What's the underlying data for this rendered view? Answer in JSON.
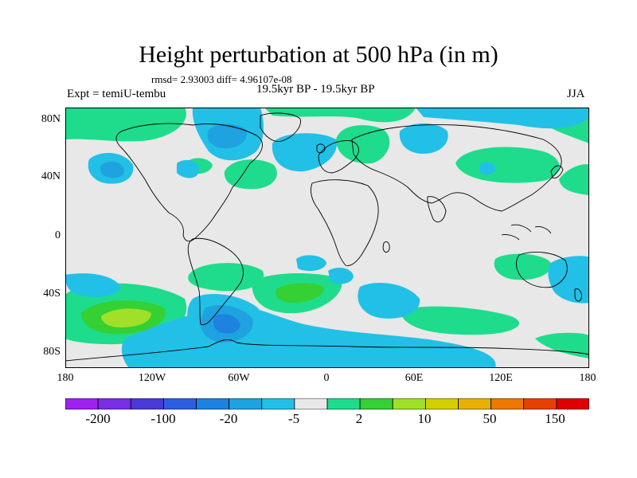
{
  "title": "Height perturbation at 500 hPa (in m)",
  "stats": "rmsd= 2.93003 diff= 4.96107e-08",
  "expt": "Expt = temiU-tembu",
  "period": "19.5kyr BP - 19.5kyr BP",
  "season": "JJA",
  "lat_labels": [
    "80N",
    "40N",
    "0",
    "40S",
    "80S"
  ],
  "lon_labels": [
    "180",
    "120W",
    "60W",
    "0",
    "60E",
    "120E",
    "180"
  ],
  "colorbar": {
    "labels": [
      "-200",
      "-100",
      "-20",
      "-5",
      "2",
      "10",
      "50",
      "150"
    ],
    "colors": [
      "#a020f0",
      "#7a2ee6",
      "#4a3ad8",
      "#2e5ee0",
      "#1e82e0",
      "#1ea2e0",
      "#22c0e6",
      "#e8e8e8",
      "#1edc8c",
      "#34d034",
      "#a0e028",
      "#d4d000",
      "#e8b000",
      "#ec7800",
      "#e84000",
      "#e00000"
    ]
  },
  "map_colors": {
    "background": "#e8e8e8",
    "pos_light": "#1edc8c",
    "pos_mid": "#34d034",
    "pos_strong": "#a0e028",
    "neg_light": "#22c0e6",
    "neg_mid": "#1ea2e0",
    "neg_strong": "#1e82e0",
    "neg_deep": "#2e5ee0",
    "coast": "#000000"
  }
}
